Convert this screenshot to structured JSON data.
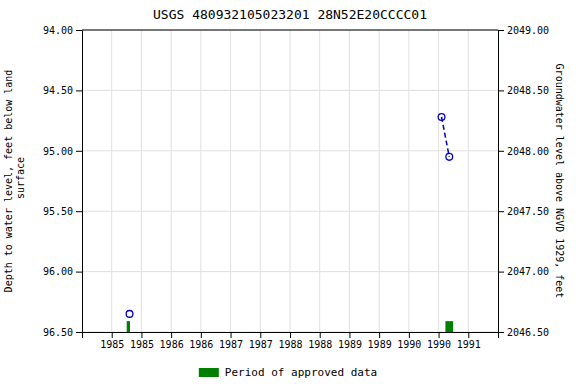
{
  "chart_data": {
    "type": "scatter",
    "title": "USGS 480932105023201 28N52E20CCCC01",
    "ylabel": "Depth to water level, feet below land\n surface",
    "y2label": "Groundwater level above NGVD 1929, feet",
    "xlim": [
      1984.5,
      1991.5
    ],
    "ylim": [
      96.5,
      94.0
    ],
    "y2lim": [
      2046.5,
      2049.0
    ],
    "xticks": [
      1985,
      {
        "value": 1985.5,
        "label": "1985"
      },
      1986,
      {
        "value": 1986.5,
        "label": "1986"
      },
      1987,
      {
        "value": 1987.5,
        "label": "1987"
      },
      1988,
      {
        "value": 1988.5,
        "label": "1988"
      },
      1989,
      {
        "value": 1989.5,
        "label": "1989"
      },
      1990,
      {
        "value": 1990.5,
        "label": "1990"
      },
      1991
    ],
    "yticks": [
      {
        "value": 94.0,
        "label": "94.00"
      },
      {
        "value": 94.5,
        "label": "94.50"
      },
      {
        "value": 95.0,
        "label": "95.00"
      },
      {
        "value": 95.5,
        "label": "95.50"
      },
      {
        "value": 96.0,
        "label": "96.00"
      },
      {
        "value": 96.5,
        "label": "96.50"
      }
    ],
    "y2ticks": [
      {
        "value": 2049.0,
        "label": "2049.00"
      },
      {
        "value": 2048.5,
        "label": "2048.50"
      },
      {
        "value": 2048.0,
        "label": "2048.00"
      },
      {
        "value": 2047.5,
        "label": "2047.50"
      },
      {
        "value": 2047.0,
        "label": "2047.00"
      },
      {
        "value": 2046.5,
        "label": "2046.50"
      }
    ],
    "grid": true,
    "legend": "bottom",
    "series": [
      {
        "type": "scatter",
        "color": "#0000cc",
        "marker": "circle",
        "x": [
          1985.3,
          1990.55,
          1990.68
        ],
        "values": [
          96.35,
          94.72,
          95.05
        ]
      },
      {
        "type": "line",
        "color": "#0000cc",
        "line_style": "dashed",
        "x": [
          1990.55,
          1990.68
        ],
        "values": [
          94.72,
          95.05
        ]
      },
      {
        "type": "bar",
        "name": "Period of approved data",
        "color": "#008000",
        "x": [
          1985.28,
          1990.68
        ],
        "widths": [
          0.055,
          0.13
        ],
        "values": [
          96.5,
          96.5
        ],
        "heights": [
          0.09,
          0.09
        ]
      }
    ]
  }
}
